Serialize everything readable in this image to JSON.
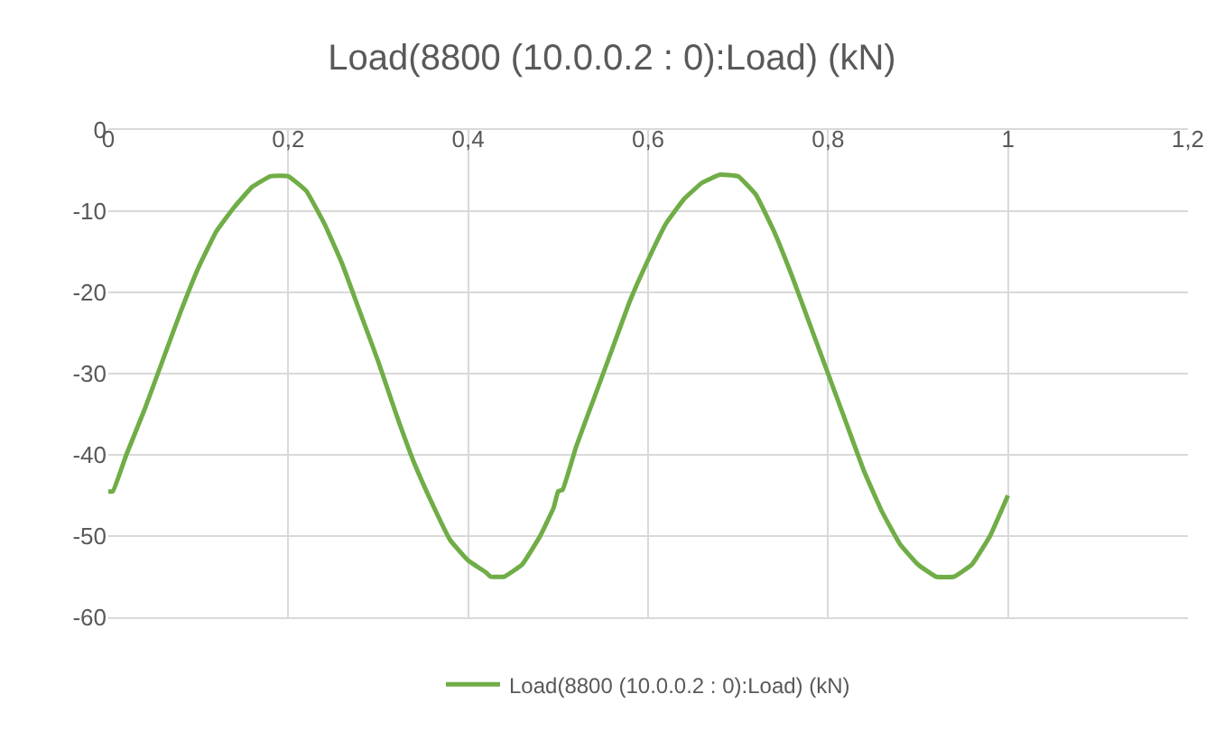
{
  "chart_data": {
    "type": "line",
    "title": "Load(8800 (10.0.0.2 : 0):Load) (kN)",
    "series": [
      {
        "name": "Load(8800 (10.0.0.2 : 0):Load) (kN)",
        "color": "#70ad47",
        "x": [
          0,
          0.005,
          0.02,
          0.04,
          0.06,
          0.08,
          0.1,
          0.12,
          0.14,
          0.16,
          0.18,
          0.2,
          0.22,
          0.24,
          0.26,
          0.28,
          0.3,
          0.32,
          0.34,
          0.36,
          0.38,
          0.4,
          0.42,
          0.425,
          0.44,
          0.46,
          0.48,
          0.495,
          0.5,
          0.505,
          0.52,
          0.54,
          0.56,
          0.58,
          0.6,
          0.62,
          0.64,
          0.66,
          0.68,
          0.7,
          0.72,
          0.74,
          0.76,
          0.78,
          0.8,
          0.82,
          0.84,
          0.86,
          0.88,
          0.9,
          0.92,
          0.94,
          0.96,
          0.98,
          1.0
        ],
        "values": [
          -44.5,
          -44.5,
          -40,
          -34.5,
          -28.5,
          -22.5,
          -17,
          -12.5,
          -9.5,
          -7,
          -5.7,
          -5.7,
          -7.5,
          -11.5,
          -16.5,
          -22.5,
          -28.5,
          -35,
          -41,
          -46,
          -50.5,
          -53,
          -54.5,
          -55,
          -55,
          -53.5,
          -50,
          -46.5,
          -44.5,
          -44.3,
          -39,
          -33,
          -27,
          -21,
          -16,
          -11.5,
          -8.5,
          -6.5,
          -5.5,
          -5.7,
          -8,
          -12.5,
          -18,
          -24,
          -30,
          -36,
          -42,
          -47,
          -51,
          -53.5,
          -55,
          -55,
          -53.5,
          -50,
          -45
        ]
      }
    ],
    "xlim": [
      0,
      1.2
    ],
    "xticks": [
      0,
      {
        "value": 0.2,
        "label": "0,2"
      },
      {
        "value": 0.4,
        "label": "0,4"
      },
      {
        "value": 0.6,
        "label": "0,6"
      },
      {
        "value": 0.8,
        "label": "0,8"
      },
      1,
      {
        "value": 1.2,
        "label": "1,2"
      }
    ],
    "ylim": [
      -60,
      0
    ],
    "yticks": [
      -60,
      -50,
      -40,
      -30,
      -20,
      -10,
      0
    ],
    "grid": true,
    "legend": "bottom",
    "marker": "none",
    "line_style": "solid"
  }
}
